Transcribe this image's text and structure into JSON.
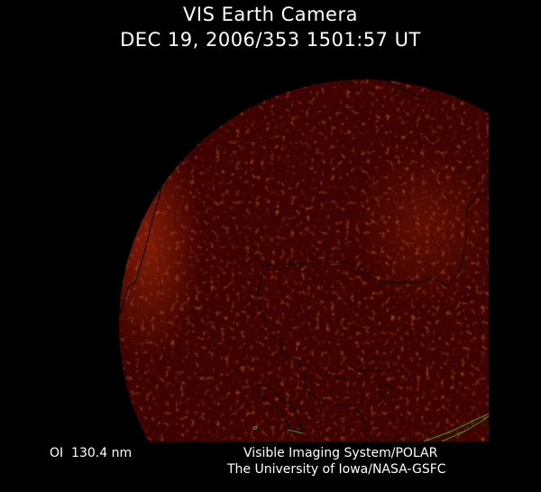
{
  "header": {
    "title": "VIS Earth Camera",
    "timestamp": "DEC 19, 2006/353 1501:57 UT"
  },
  "footer": {
    "filter": "OI  130.4 nm",
    "instrument": "Visible Imaging System/POLAR",
    "institution": "The University of Iowa/NASA-GSFC"
  },
  "colors": {
    "background": "#000000",
    "earth_disk": "#3e0200",
    "glow": "#b4320a",
    "coastline": "#000000",
    "overlay_line": "#3c9a1e",
    "text": "#ffffff"
  }
}
